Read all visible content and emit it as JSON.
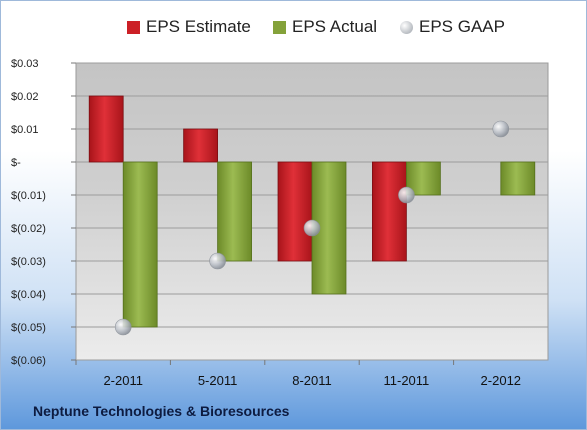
{
  "chart_data": {
    "type": "bar",
    "categories": [
      "2-2011",
      "5-2011",
      "8-2011",
      "11-2011",
      "2-2012"
    ],
    "series": [
      {
        "name": "EPS Estimate",
        "values": [
          0.02,
          0.01,
          -0.03,
          -0.03,
          null
        ],
        "color": "#cc2026"
      },
      {
        "name": "EPS Actual",
        "values": [
          -0.05,
          -0.03,
          -0.04,
          -0.01,
          -0.01
        ],
        "color": "#84a23a"
      },
      {
        "name": "EPS GAAP",
        "values": [
          -0.05,
          -0.03,
          -0.02,
          -0.01,
          0.01
        ],
        "color": "#b9bec6",
        "marker": "sphere"
      }
    ],
    "ylim": [
      -0.06,
      0.03
    ],
    "yticks": [
      0.03,
      0.02,
      0.01,
      0,
      -0.01,
      -0.02,
      -0.03,
      -0.04,
      -0.05,
      -0.06
    ],
    "ytick_labels": [
      "$0.03",
      "$0.02",
      "$0.01",
      "$-",
      "$(0.01)",
      "$(0.02)",
      "$(0.03)",
      "$(0.04)",
      "$(0.05)",
      "$(0.06)"
    ],
    "grid": true,
    "legend_position": "top"
  },
  "footer": {
    "company": "Neptune Technologies & Bioresources"
  }
}
